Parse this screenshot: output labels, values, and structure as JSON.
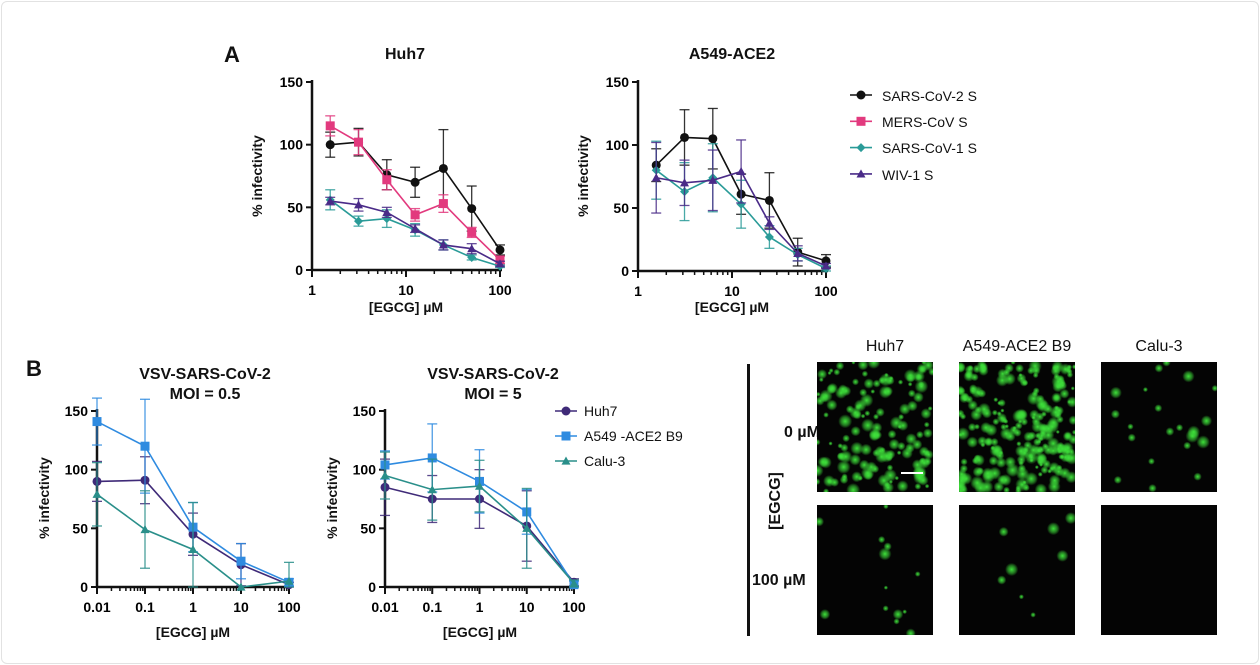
{
  "panel_labels": {
    "a": "A",
    "b": "B"
  },
  "chart_data": [
    {
      "type": "line",
      "title": "Huh7",
      "xlabel": "[EGCG] µM",
      "ylabel": "% infectivity",
      "xscale": "log",
      "xlim": [
        1,
        100
      ],
      "ylim": [
        0,
        150
      ],
      "xticks": [
        "1",
        "10",
        "100"
      ],
      "yticks": [
        "0",
        "50",
        "100",
        "150"
      ],
      "x": [
        1.5625,
        3.125,
        6.25,
        12.5,
        25,
        50,
        100
      ],
      "series": [
        {
          "name": "SARS-CoV-2 S",
          "color": "#111111",
          "marker": "circle",
          "values": [
            100,
            102,
            76,
            70,
            81,
            49,
            16
          ],
          "err": [
            10,
            11,
            12,
            12,
            31,
            18,
            4
          ]
        },
        {
          "name": "MERS-CoV S",
          "color": "#e23a7e",
          "marker": "square",
          "values": [
            115,
            102,
            72,
            44,
            53,
            30,
            8
          ],
          "err": [
            8,
            10,
            8,
            5,
            7,
            4,
            3
          ]
        },
        {
          "name": "SARS-CoV-1 S",
          "color": "#2a9b98",
          "marker": "diamond",
          "values": [
            56,
            39,
            41,
            32,
            20,
            10,
            3
          ],
          "err": [
            8,
            4,
            7,
            5,
            4,
            2,
            1
          ]
        },
        {
          "name": "WIV-1 S",
          "color": "#4a2b88",
          "marker": "triangle",
          "values": [
            55,
            52,
            46,
            33,
            20,
            17,
            5
          ],
          "err": [
            3,
            5,
            4,
            3,
            4,
            4,
            2
          ]
        }
      ]
    },
    {
      "type": "line",
      "title": "A549-ACE2",
      "xlabel": "[EGCG] µM",
      "ylabel": "% infectivity",
      "xscale": "log",
      "xlim": [
        1,
        100
      ],
      "ylim": [
        0,
        150
      ],
      "xticks": [
        "1",
        "10",
        "100"
      ],
      "yticks": [
        "0",
        "50",
        "100",
        "150"
      ],
      "x": [
        1.5625,
        3.125,
        6.25,
        12.5,
        25,
        50,
        100
      ],
      "legend": "right",
      "series": [
        {
          "name": "SARS-CoV-2 S",
          "color": "#111111",
          "marker": "circle",
          "values": [
            84,
            106,
            105,
            61,
            56,
            15,
            8
          ],
          "err": [
            13,
            22,
            24,
            16,
            22,
            11,
            5
          ]
        },
        {
          "name": "MERS-CoV S",
          "color": "#e23a7e",
          "marker": "square",
          "values": [
            null,
            null,
            null,
            null,
            null,
            null,
            null
          ],
          "err": []
        },
        {
          "name": "SARS-CoV-1 S",
          "color": "#2a9b98",
          "marker": "diamond",
          "values": [
            80,
            63,
            74,
            53,
            27,
            13,
            2
          ],
          "err": [
            23,
            23,
            27,
            19,
            9,
            5,
            2
          ]
        },
        {
          "name": "WIV-1 S",
          "color": "#4a2b88",
          "marker": "triangle",
          "values": [
            74,
            70,
            72,
            79,
            38,
            14,
            4
          ],
          "err": [
            28,
            18,
            24,
            25,
            5,
            6,
            2
          ]
        }
      ]
    },
    {
      "type": "line",
      "title": "VSV-SARS-CoV-2",
      "subtitle": "MOI = 0.5",
      "xlabel": "[EGCG] µM",
      "ylabel": "% infectivity",
      "xscale": "log",
      "xlim": [
        0.01,
        100
      ],
      "ylim": [
        0,
        150
      ],
      "xticks": [
        "0.01",
        "0.1",
        "1",
        "10",
        "100"
      ],
      "yticks": [
        "0",
        "50",
        "100",
        "150"
      ],
      "x": [
        0.01,
        0.1,
        1,
        10,
        100
      ],
      "series": [
        {
          "name": "Huh7",
          "color": "#3f2a78",
          "marker": "circle",
          "values": [
            90,
            91,
            45,
            19,
            2
          ],
          "err": [
            17,
            20,
            18,
            18,
            2
          ]
        },
        {
          "name": "A549 -ACE2 B9",
          "color": "#2f8be0",
          "marker": "square",
          "values": [
            141,
            120,
            51,
            22,
            4
          ],
          "err": [
            20,
            40,
            21,
            15,
            3
          ]
        },
        {
          "name": "Calu-3",
          "color": "#2a8f8a",
          "marker": "triangle",
          "values": [
            79,
            49,
            32,
            0,
            5
          ],
          "err": [
            27,
            33,
            40,
            0,
            16
          ]
        }
      ]
    },
    {
      "type": "line",
      "title": "VSV-SARS-CoV-2",
      "subtitle": "MOI = 5",
      "xlabel": "[EGCG] µM",
      "ylabel": "% infectivity",
      "xscale": "log",
      "xlim": [
        0.01,
        100
      ],
      "ylim": [
        0,
        150
      ],
      "xticks": [
        "0.01",
        "0.1",
        "1",
        "10",
        "100"
      ],
      "yticks": [
        "0",
        "50",
        "100",
        "150"
      ],
      "x": [
        0.01,
        0.1,
        1,
        10,
        100
      ],
      "legend": "right",
      "series": [
        {
          "name": "Huh7",
          "color": "#3f2a78",
          "marker": "circle",
          "values": [
            85,
            75,
            75,
            52,
            4
          ],
          "err": [
            24,
            20,
            25,
            30,
            3
          ]
        },
        {
          "name": "A549 -ACE2 B9",
          "color": "#2f8be0",
          "marker": "square",
          "values": [
            104,
            110,
            90,
            64,
            2
          ],
          "err": [
            12,
            29,
            27,
            19,
            3
          ]
        },
        {
          "name": "Calu-3",
          "color": "#2a8f8a",
          "marker": "triangle",
          "values": [
            95,
            83,
            86,
            50,
            3
          ],
          "err": [
            20,
            26,
            22,
            34,
            3
          ]
        }
      ]
    }
  ],
  "micrographs": {
    "columns": [
      "Huh7",
      "A549-ACE2 B9",
      "Calu-3"
    ],
    "row_axis_label": "[EGCG]",
    "rows": [
      "0 µM",
      "100 µM"
    ],
    "fluorescence_color": "#3ee03a",
    "signal_level": [
      [
        0.55,
        0.9,
        0.08
      ],
      [
        0.04,
        0.02,
        0.0
      ]
    ]
  }
}
